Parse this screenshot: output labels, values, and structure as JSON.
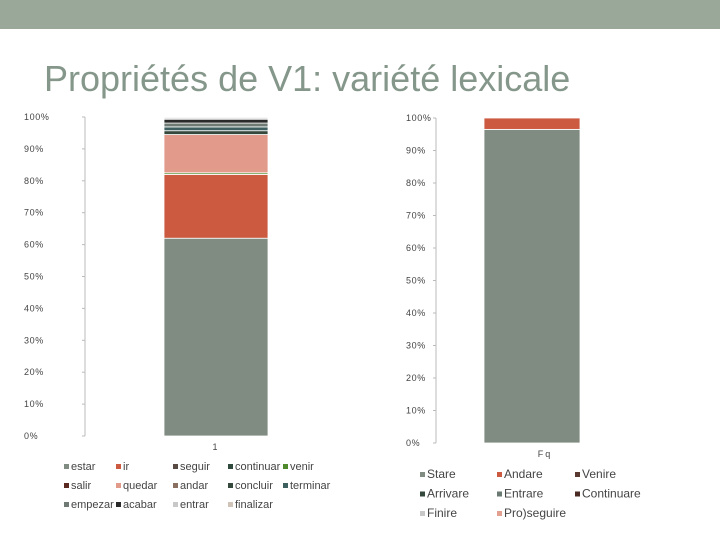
{
  "slide": {
    "title": "Propriétés de V1: variété lexicale"
  },
  "colors": {
    "topbar": "#9aa89a",
    "title": "#85978a"
  },
  "chart_data": [
    {
      "type": "bar",
      "stacked": true,
      "percent": true,
      "categories": [
        "1"
      ],
      "ylim": [
        0,
        100
      ],
      "yticks": [
        "0%",
        "10%",
        "20%",
        "30%",
        "40%",
        "50%",
        "60%",
        "70%",
        "80%",
        "90%",
        "100%"
      ],
      "grid": false,
      "legend_position": "bottom",
      "series": [
        {
          "name": "estar",
          "values": [
            62
          ],
          "color": "#808c82"
        },
        {
          "name": "ir",
          "values": [
            20
          ],
          "color": "#cc5a40"
        },
        {
          "name": "seguir",
          "values": [
            0
          ],
          "color": "#5a4a44"
        },
        {
          "name": "continuar",
          "values": [
            0
          ],
          "color": "#2f4a3c"
        },
        {
          "name": "venir",
          "values": [
            0.5
          ],
          "color": "#4f8a2c"
        },
        {
          "name": "salir",
          "values": [
            0
          ],
          "color": "#5a2a20"
        },
        {
          "name": "quedar",
          "values": [
            12
          ],
          "color": "#e29a8a"
        },
        {
          "name": "andar",
          "values": [
            0
          ],
          "color": "#8a7060"
        },
        {
          "name": "concluir",
          "values": [
            1.2
          ],
          "color": "#34483c"
        },
        {
          "name": "terminar",
          "values": [
            1.2
          ],
          "color": "#3e6060"
        },
        {
          "name": "empezar",
          "values": [
            1.2
          ],
          "color": "#707a74"
        },
        {
          "name": "acabar",
          "values": [
            1.2
          ],
          "color": "#2a2a2a"
        },
        {
          "name": "entrar",
          "values": [
            0.4
          ],
          "color": "#c8c8c8"
        },
        {
          "name": "finalizar",
          "values": [
            0.3
          ],
          "color": "#d0c4b8"
        }
      ]
    },
    {
      "type": "bar",
      "stacked": true,
      "percent": true,
      "categories": [
        "Fq"
      ],
      "ylim": [
        0,
        100
      ],
      "yticks": [
        "0%",
        "10%",
        "20%",
        "30%",
        "40%",
        "50%",
        "60%",
        "70%",
        "80%",
        "90%",
        "100%"
      ],
      "grid": false,
      "legend_position": "bottom",
      "series": [
        {
          "name": "Stare",
          "values": [
            96.5
          ],
          "color": "#808c82"
        },
        {
          "name": "Andare",
          "values": [
            3.5
          ],
          "color": "#cc5a40"
        },
        {
          "name": "Venire",
          "values": [
            0
          ],
          "color": "#5a3a30"
        },
        {
          "name": "Arrivare",
          "values": [
            0
          ],
          "color": "#34483c"
        },
        {
          "name": "Entrare",
          "values": [
            0
          ],
          "color": "#6a7a72"
        },
        {
          "name": "Continuare",
          "values": [
            0
          ],
          "color": "#4a2a22"
        },
        {
          "name": "Finire",
          "values": [
            0
          ],
          "color": "#c8c8c8"
        },
        {
          "name": "Pro)seguire",
          "values": [
            0
          ],
          "color": "#e2a090"
        }
      ]
    }
  ]
}
